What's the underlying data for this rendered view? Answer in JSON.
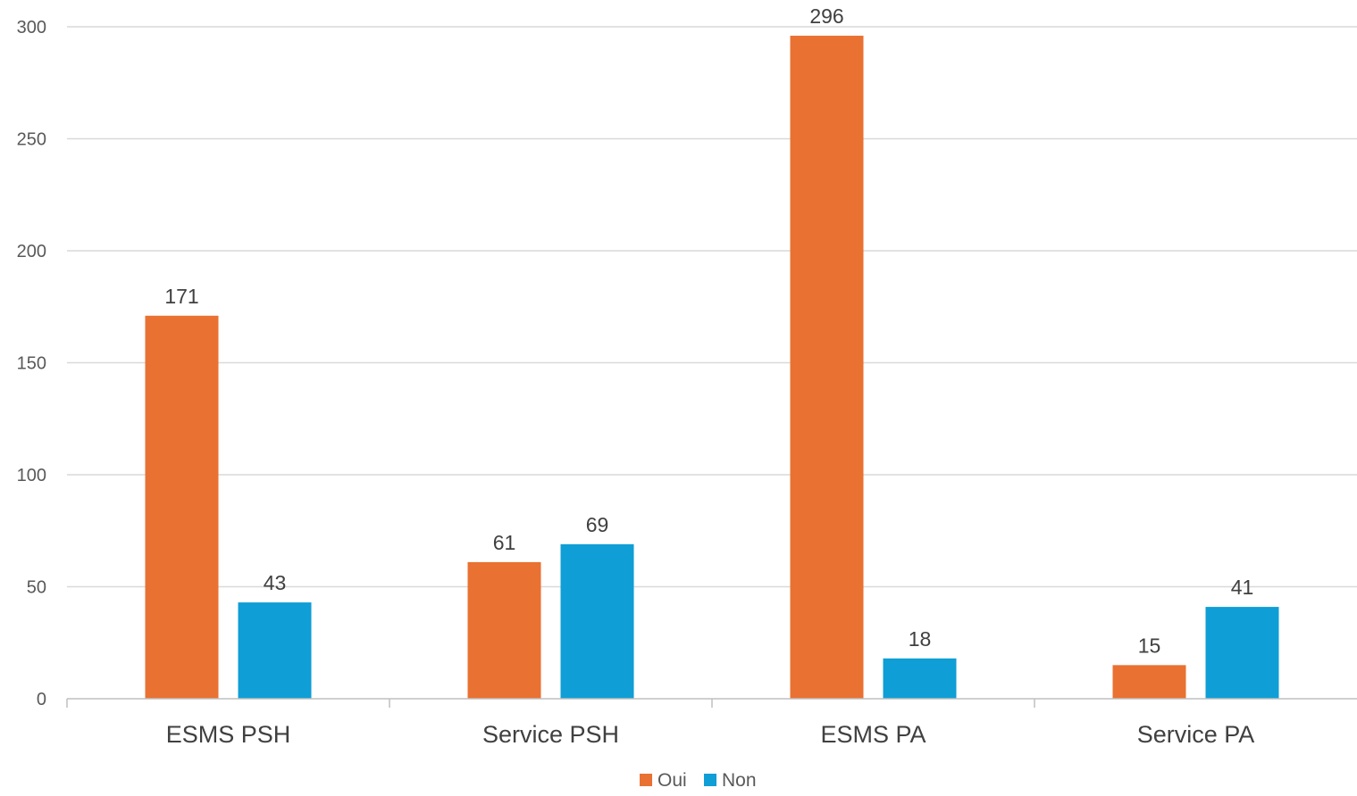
{
  "chart_data": {
    "type": "bar",
    "categories": [
      "ESMS PSH",
      "Service PSH",
      "ESMS PA",
      "Service PA"
    ],
    "series": [
      {
        "name": "Oui",
        "values": [
          171,
          61,
          296,
          15
        ],
        "color": "#E97132"
      },
      {
        "name": "Non",
        "values": [
          43,
          69,
          18,
          41
        ],
        "color": "#0F9ED5"
      }
    ],
    "title": "",
    "xlabel": "",
    "ylabel": "",
    "ylim": [
      0,
      300
    ],
    "yticks": [
      0,
      50,
      100,
      150,
      200,
      250,
      300
    ],
    "grid": true,
    "legend": "bottom-center",
    "data_labels": true
  }
}
